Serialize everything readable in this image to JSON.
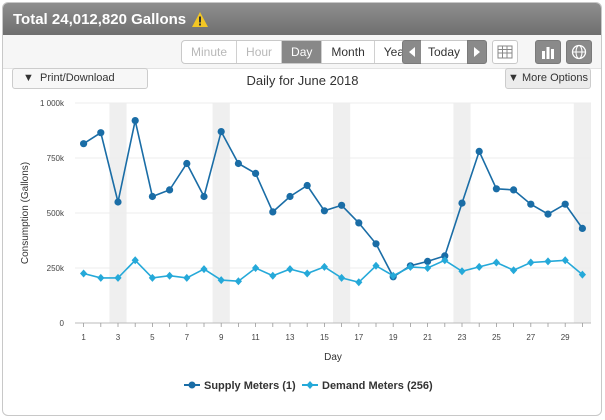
{
  "header": {
    "title": "Total 24,012,820 Gallons",
    "icon": "warning-icon"
  },
  "toolbar": {
    "ranges": [
      "Minute",
      "Hour",
      "Day",
      "Month",
      "Year"
    ],
    "active_range": "Day",
    "today_label": "Today"
  },
  "controls": {
    "print_label": "Print/Download",
    "more_options_label": "More Options"
  },
  "colors": {
    "supply": "#1a6da6",
    "demand": "#25a9d9",
    "weekend": "#efefef"
  },
  "chart_data": {
    "type": "line",
    "title": "Daily for June 2018",
    "xlabel": "Day",
    "ylabel": "Consumption (Gallons)",
    "x": [
      1,
      2,
      3,
      4,
      5,
      6,
      7,
      8,
      9,
      10,
      11,
      12,
      13,
      14,
      15,
      16,
      17,
      18,
      19,
      20,
      21,
      22,
      23,
      24,
      25,
      26,
      27,
      28,
      29,
      30
    ],
    "xticks": [
      1,
      3,
      5,
      7,
      9,
      11,
      13,
      15,
      17,
      19,
      21,
      23,
      25,
      27,
      29
    ],
    "ylim": [
      0,
      1000000
    ],
    "yticks": [
      0,
      250000,
      500000,
      750000,
      1000000
    ],
    "ytick_labels": [
      "0",
      "250k",
      "500k",
      "750k",
      "1 000k"
    ],
    "shaded_days": [
      3,
      9,
      16,
      23,
      30
    ],
    "series": [
      {
        "name": "Supply Meters (1)",
        "values": [
          815000,
          865000,
          550000,
          920000,
          575000,
          605000,
          725000,
          575000,
          870000,
          725000,
          680000,
          505000,
          575000,
          625000,
          510000,
          535000,
          455000,
          360000,
          210000,
          260000,
          280000,
          305000,
          545000,
          780000,
          610000,
          605000,
          540000,
          495000,
          540000,
          430000
        ]
      },
      {
        "name": "Demand Meters (256)",
        "values": [
          225000,
          205000,
          205000,
          285000,
          205000,
          215000,
          205000,
          245000,
          195000,
          190000,
          250000,
          215000,
          245000,
          225000,
          255000,
          205000,
          185000,
          260000,
          215000,
          255000,
          250000,
          285000,
          235000,
          255000,
          275000,
          240000,
          275000,
          280000,
          285000,
          220000
        ]
      }
    ]
  }
}
